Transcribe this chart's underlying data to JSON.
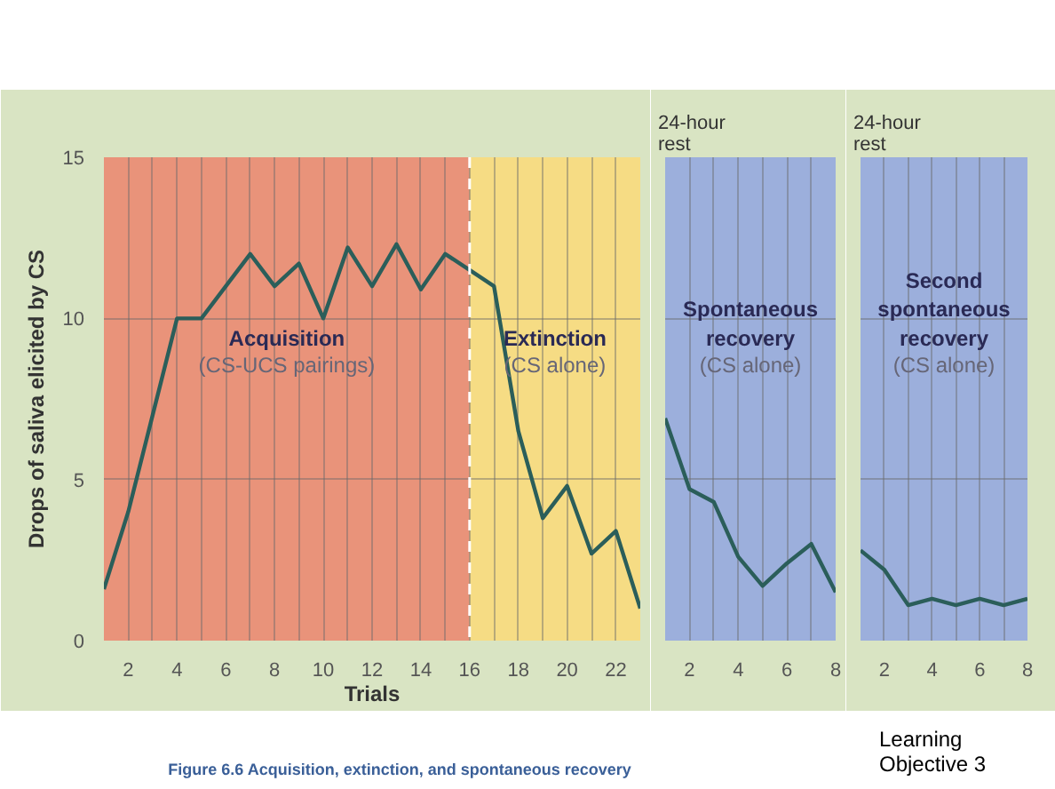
{
  "chart_data": [
    {
      "type": "line",
      "xlabel": "Trials",
      "ylabel": "Drops of saliva elicited by CS",
      "xlim": [
        1,
        23
      ],
      "ylim": [
        0,
        15
      ],
      "xticks": [
        {
          "value": 1,
          "label": null
        },
        2,
        {
          "value": 3,
          "label": null
        },
        4,
        {
          "value": 5,
          "label": null
        },
        6,
        {
          "value": 7,
          "label": null
        },
        8,
        {
          "value": 9,
          "label": null
        },
        10,
        {
          "value": 11,
          "label": null
        },
        12,
        {
          "value": 13,
          "label": null
        },
        14,
        {
          "value": 15,
          "label": null
        },
        16,
        {
          "value": 17,
          "label": null
        },
        18,
        {
          "value": 19,
          "label": null
        },
        20,
        {
          "value": 21,
          "label": null
        },
        22
      ],
      "yticks": [
        0,
        5,
        10,
        15
      ],
      "grid": true,
      "x": [
        1,
        2,
        3,
        4,
        5,
        6,
        7,
        8,
        9,
        10,
        11,
        12,
        13,
        14,
        15,
        16,
        17,
        18,
        19,
        20,
        21,
        22,
        23
      ],
      "series": [
        {
          "color": "#2b5e5a",
          "values": [
            1.6,
            4.0,
            7.0,
            10.0,
            10.0,
            11.0,
            12.0,
            11.0,
            11.7,
            10.0,
            12.2,
            11.0,
            12.3,
            10.9,
            12.0,
            11.5,
            11.0,
            6.5,
            3.8,
            4.8,
            2.7,
            3.4,
            1.0
          ]
        }
      ],
      "bands": [
        {
          "axis": "x",
          "from": 1,
          "to": 16,
          "label": "Acquisition\n(CS-UCS pairings)",
          "color": "#e9937a"
        },
        {
          "axis": "x",
          "from": 16,
          "to": 23,
          "label": "Extinction\n(CS alone)",
          "color": "#f6dc84"
        }
      ],
      "ref_lines": [
        {
          "axis": "x",
          "value": 16,
          "color": "#ffffff",
          "line_style": "dashed"
        }
      ],
      "annotations": [
        "Figure 6.6  Acquisition, extinction, and spontaneous recovery",
        "Learning\nObjective 3"
      ]
    },
    {
      "type": "line",
      "title": "24-hour\nrest",
      "xlim": [
        1,
        8
      ],
      "ylim": [
        0,
        15
      ],
      "xticks": [
        {
          "value": 1,
          "label": null
        },
        2,
        {
          "value": 3,
          "label": null
        },
        4,
        {
          "value": 5,
          "label": null
        },
        6,
        {
          "value": 7,
          "label": null
        },
        8
      ],
      "yticks": [
        0,
        5,
        10,
        15
      ],
      "grid": true,
      "tick_labels": "x",
      "x": [
        1,
        2,
        3,
        4,
        5,
        6,
        7,
        8
      ],
      "series": [
        {
          "color": "#2b5e5a",
          "values": [
            6.9,
            4.7,
            4.3,
            2.6,
            1.7,
            2.4,
            3.0,
            1.5
          ]
        }
      ],
      "bands": [
        {
          "axis": "x",
          "from": 1,
          "to": 8,
          "label": "Spontaneous\nrecovery\n(CS alone)",
          "color": "#9cafdc"
        }
      ]
    },
    {
      "type": "line",
      "title": "24-hour\nrest",
      "xlim": [
        1,
        8
      ],
      "ylim": [
        0,
        15
      ],
      "xticks": [
        {
          "value": 1,
          "label": null
        },
        2,
        {
          "value": 3,
          "label": null
        },
        4,
        {
          "value": 5,
          "label": null
        },
        6,
        {
          "value": 7,
          "label": null
        },
        8
      ],
      "yticks": [
        0,
        5,
        10,
        15
      ],
      "grid": true,
      "tick_labels": "x",
      "x": [
        1,
        2,
        3,
        4,
        5,
        6,
        7,
        8
      ],
      "series": [
        {
          "color": "#2b5e5a",
          "values": [
            2.8,
            2.2,
            1.1,
            1.3,
            1.1,
            1.3,
            1.1,
            1.3
          ]
        }
      ],
      "bands": [
        {
          "axis": "x",
          "from": 1,
          "to": 8,
          "label": "Second\nspontaneous\nrecovery\n(CS alone)",
          "color": "#9cafdc"
        }
      ]
    }
  ]
}
